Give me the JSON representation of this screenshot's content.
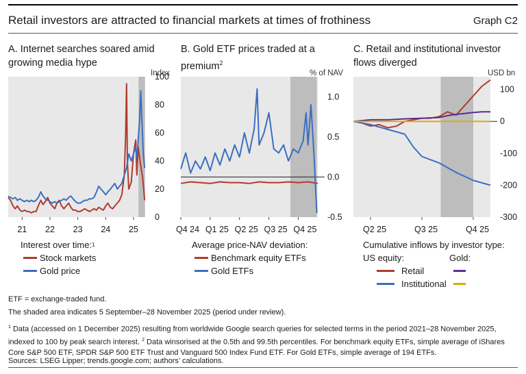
{
  "header": {
    "title": "Retail investors are attracted to financial markets at times of frothiness",
    "graph_label": "Graph C2"
  },
  "colors": {
    "red": "#b03a2e",
    "blue": "#3b6ec2",
    "purple": "#5a2d91",
    "gold": "#e3a80b",
    "shade": "#bdbdbd",
    "panel_bg": "#e8e8e8"
  },
  "panelA": {
    "title": "A. Internet searches soared amid growing media hype",
    "unit": "Index",
    "legend_heading": "Interest over time:",
    "legend_heading_note": "1",
    "legend": [
      "Stock markets",
      "Gold price"
    ]
  },
  "panelB": {
    "title": "B. Gold ETF prices traded at a premium",
    "title_note": "2",
    "unit": "% of NAV",
    "legend_heading": "Average price-NAV deviation:",
    "legend": [
      "Benchmark equity ETFs",
      "Gold ETFs"
    ]
  },
  "panelC": {
    "title": "C. Retail and institutional investor flows diverged",
    "unit": "USD bn",
    "legend_heading": "Cumulative inflows by investor type:",
    "legend_col1": "US equity:",
    "legend_col2": "Gold:",
    "legend": [
      "Retail",
      "Institutional"
    ]
  },
  "notes": {
    "etf_def": "ETF = exchange-traded fund.",
    "shaded": "The shaded area indicates 5 September–28 November 2025 (period under review).",
    "n1_mark": "1",
    "n1": "Data (accessed on 1 December 2025) resulting from worldwide Google search queries for selected terms in the period 2021–28 November 2025, indexed to 100 by peak search interest.",
    "n2_mark": "2",
    "n2": "Data winsorised at the 0.5th and 99.5th percentiles. For benchmark equity ETFs, simple average of iShares Core S&P 500 ETF, SPDR S&P 500 ETF Trust and Vanguard 500 Index Fund ETF. For Gold ETFs, simple average of 194 ETFs.",
    "sources": "Sources: LSEG Lipper; trends.google.com; authors’ calculations."
  },
  "chart_data": [
    {
      "type": "line",
      "title": "A. Internet searches soared amid growing media hype",
      "ylabel": "Index",
      "ylim": [
        0,
        100
      ],
      "yticks": [
        0,
        20,
        40,
        60,
        80,
        100
      ],
      "xticks": [
        "21",
        "22",
        "23",
        "24",
        "25"
      ],
      "x_range": [
        2021.0,
        2025.92
      ],
      "shaded": [
        2025.68,
        2025.91
      ],
      "series": [
        {
          "name": "Stock markets",
          "color": "#b03a2e",
          "points": [
            [
              2021.0,
              14
            ],
            [
              2021.08,
              12
            ],
            [
              2021.17,
              8
            ],
            [
              2021.25,
              6
            ],
            [
              2021.33,
              8
            ],
            [
              2021.42,
              5
            ],
            [
              2021.5,
              4
            ],
            [
              2021.58,
              5
            ],
            [
              2021.67,
              4
            ],
            [
              2021.75,
              4
            ],
            [
              2021.83,
              3
            ],
            [
              2021.92,
              4
            ],
            [
              2022.0,
              4
            ],
            [
              2022.08,
              8
            ],
            [
              2022.17,
              12
            ],
            [
              2022.25,
              9
            ],
            [
              2022.33,
              11
            ],
            [
              2022.42,
              14
            ],
            [
              2022.5,
              10
            ],
            [
              2022.58,
              8
            ],
            [
              2022.67,
              6
            ],
            [
              2022.75,
              10
            ],
            [
              2022.83,
              12
            ],
            [
              2022.92,
              8
            ],
            [
              2023.0,
              6
            ],
            [
              2023.08,
              8
            ],
            [
              2023.17,
              10
            ],
            [
              2023.25,
              7
            ],
            [
              2023.33,
              5
            ],
            [
              2023.42,
              5
            ],
            [
              2023.5,
              4
            ],
            [
              2023.58,
              4
            ],
            [
              2023.67,
              5
            ],
            [
              2023.75,
              6
            ],
            [
              2023.83,
              5
            ],
            [
              2023.92,
              4
            ],
            [
              2024.0,
              5
            ],
            [
              2024.08,
              6
            ],
            [
              2024.17,
              5
            ],
            [
              2024.25,
              7
            ],
            [
              2024.33,
              6
            ],
            [
              2024.42,
              5
            ],
            [
              2024.5,
              8
            ],
            [
              2024.58,
              10
            ],
            [
              2024.67,
              7
            ],
            [
              2024.75,
              6
            ],
            [
              2024.83,
              8
            ],
            [
              2024.92,
              10
            ],
            [
              2025.0,
              12
            ],
            [
              2025.08,
              16
            ],
            [
              2025.17,
              30
            ],
            [
              2025.22,
              60
            ],
            [
              2025.25,
              95
            ],
            [
              2025.28,
              40
            ],
            [
              2025.33,
              20
            ],
            [
              2025.42,
              25
            ],
            [
              2025.5,
              45
            ],
            [
              2025.58,
              55
            ],
            [
              2025.62,
              30
            ],
            [
              2025.67,
              50
            ],
            [
              2025.75,
              38
            ],
            [
              2025.83,
              28
            ],
            [
              2025.9,
              12
            ]
          ]
        },
        {
          "name": "Gold price",
          "color": "#3b6ec2",
          "points": [
            [
              2021.0,
              15
            ],
            [
              2021.08,
              14
            ],
            [
              2021.17,
              13
            ],
            [
              2021.25,
              14
            ],
            [
              2021.33,
              12
            ],
            [
              2021.42,
              13
            ],
            [
              2021.5,
              12
            ],
            [
              2021.58,
              11
            ],
            [
              2021.67,
              12
            ],
            [
              2021.75,
              11
            ],
            [
              2021.83,
              12
            ],
            [
              2021.92,
              11
            ],
            [
              2022.0,
              12
            ],
            [
              2022.08,
              14
            ],
            [
              2022.17,
              18
            ],
            [
              2022.25,
              15
            ],
            [
              2022.33,
              13
            ],
            [
              2022.42,
              12
            ],
            [
              2022.5,
              11
            ],
            [
              2022.58,
              10
            ],
            [
              2022.67,
              11
            ],
            [
              2022.75,
              10
            ],
            [
              2022.83,
              11
            ],
            [
              2022.92,
              12
            ],
            [
              2023.0,
              13
            ],
            [
              2023.08,
              12
            ],
            [
              2023.17,
              14
            ],
            [
              2023.25,
              15
            ],
            [
              2023.33,
              13
            ],
            [
              2023.42,
              11
            ],
            [
              2023.5,
              10
            ],
            [
              2023.58,
              10
            ],
            [
              2023.67,
              11
            ],
            [
              2023.75,
              12
            ],
            [
              2023.83,
              12
            ],
            [
              2023.92,
              13
            ],
            [
              2024.0,
              13
            ],
            [
              2024.08,
              14
            ],
            [
              2024.17,
              18
            ],
            [
              2024.25,
              22
            ],
            [
              2024.33,
              20
            ],
            [
              2024.42,
              18
            ],
            [
              2024.5,
              16
            ],
            [
              2024.58,
              18
            ],
            [
              2024.67,
              20
            ],
            [
              2024.75,
              22
            ],
            [
              2024.83,
              24
            ],
            [
              2024.92,
              20
            ],
            [
              2025.0,
              22
            ],
            [
              2025.08,
              24
            ],
            [
              2025.17,
              30
            ],
            [
              2025.25,
              35
            ],
            [
              2025.33,
              45
            ],
            [
              2025.42,
              40
            ],
            [
              2025.5,
              45
            ],
            [
              2025.58,
              50
            ],
            [
              2025.62,
              42
            ],
            [
              2025.67,
              55
            ],
            [
              2025.72,
              70
            ],
            [
              2025.76,
              90
            ],
            [
              2025.8,
              70
            ],
            [
              2025.85,
              45
            ],
            [
              2025.9,
              35
            ]
          ]
        }
      ]
    },
    {
      "type": "line",
      "title": "B. Gold ETF prices traded at a premium",
      "ylabel": "% of NAV",
      "ylim": [
        -0.5,
        1.25
      ],
      "yticks": [
        -0.5,
        0.0,
        0.5,
        1.0
      ],
      "xticks": [
        "Q4 24",
        "Q1 25",
        "Q2 25",
        "Q3 25",
        "Q4 25"
      ],
      "x_range": [
        0,
        14
      ],
      "shaded": [
        11.2,
        13.9
      ],
      "series": [
        {
          "name": "Benchmark equity ETFs",
          "color": "#b03a2e",
          "points": [
            [
              0,
              -0.08
            ],
            [
              1,
              -0.06
            ],
            [
              2,
              -0.07
            ],
            [
              3,
              -0.08
            ],
            [
              4,
              -0.06
            ],
            [
              5,
              -0.07
            ],
            [
              6,
              -0.07
            ],
            [
              7,
              -0.08
            ],
            [
              8,
              -0.06
            ],
            [
              9,
              -0.07
            ],
            [
              10,
              -0.07
            ],
            [
              11,
              -0.06
            ],
            [
              12,
              -0.07
            ],
            [
              13,
              -0.06
            ],
            [
              14,
              -0.08
            ]
          ]
        },
        {
          "name": "Gold ETFs",
          "color": "#3b6ec2",
          "points": [
            [
              0,
              0.1
            ],
            [
              0.5,
              0.3
            ],
            [
              1,
              0.05
            ],
            [
              1.5,
              0.2
            ],
            [
              2,
              0.1
            ],
            [
              2.5,
              0.25
            ],
            [
              3,
              0.08
            ],
            [
              3.5,
              0.3
            ],
            [
              4,
              0.15
            ],
            [
              4.5,
              0.35
            ],
            [
              5,
              0.2
            ],
            [
              5.5,
              0.4
            ],
            [
              6,
              0.25
            ],
            [
              6.5,
              0.55
            ],
            [
              7,
              0.3
            ],
            [
              7.5,
              0.6
            ],
            [
              7.8,
              1.1
            ],
            [
              8,
              0.4
            ],
            [
              8.5,
              0.55
            ],
            [
              9,
              0.8
            ],
            [
              9.5,
              0.35
            ],
            [
              10,
              0.3
            ],
            [
              10.5,
              0.4
            ],
            [
              11,
              0.2
            ],
            [
              11.5,
              0.35
            ],
            [
              12,
              0.3
            ],
            [
              12.5,
              0.45
            ],
            [
              12.8,
              0.8
            ],
            [
              13,
              0.4
            ],
            [
              13.3,
              0.9
            ],
            [
              13.6,
              0.3
            ],
            [
              13.9,
              -0.45
            ]
          ]
        }
      ]
    },
    {
      "type": "line",
      "title": "C. Retail and institutional investor flows diverged",
      "ylabel": "USD bn",
      "ylim": [
        -300,
        140
      ],
      "yticks": [
        -300,
        -200,
        -100,
        0,
        100
      ],
      "xticks": [
        "Q2 25",
        "Q3 25",
        "Q4 25"
      ],
      "x_range": [
        0,
        8
      ],
      "shaded": [
        5.1,
        7.0
      ],
      "series": [
        {
          "name": "US equity retail",
          "color": "#b03a2e",
          "points": [
            [
              0,
              0
            ],
            [
              0.5,
              -5
            ],
            [
              1,
              -15
            ],
            [
              1.5,
              -10
            ],
            [
              2,
              -20
            ],
            [
              2.5,
              -15
            ],
            [
              3,
              0
            ],
            [
              3.5,
              5
            ],
            [
              4,
              10
            ],
            [
              4.5,
              10
            ],
            [
              5,
              15
            ],
            [
              5.5,
              30
            ],
            [
              6,
              20
            ],
            [
              6.5,
              50
            ],
            [
              7,
              80
            ],
            [
              7.5,
              110
            ],
            [
              8,
              130
            ]
          ]
        },
        {
          "name": "US equity institutional",
          "color": "#3b6ec2",
          "points": [
            [
              0,
              0
            ],
            [
              1,
              -10
            ],
            [
              2,
              -25
            ],
            [
              3,
              -40
            ],
            [
              3.5,
              -80
            ],
            [
              4,
              -110
            ],
            [
              5,
              -130
            ],
            [
              6,
              -160
            ],
            [
              7,
              -185
            ],
            [
              8,
              -200
            ]
          ]
        },
        {
          "name": "Gold retail",
          "color": "#5a2d91",
          "points": [
            [
              0,
              0
            ],
            [
              1,
              5
            ],
            [
              2,
              5
            ],
            [
              3,
              8
            ],
            [
              4,
              10
            ],
            [
              5,
              12
            ],
            [
              5.5,
              18
            ],
            [
              6,
              22
            ],
            [
              6.5,
              25
            ],
            [
              7,
              28
            ],
            [
              7.5,
              30
            ],
            [
              8,
              30
            ]
          ]
        },
        {
          "name": "Gold institutional",
          "color": "#e3a80b",
          "points": [
            [
              0,
              0
            ],
            [
              8,
              0
            ]
          ]
        }
      ]
    }
  ]
}
